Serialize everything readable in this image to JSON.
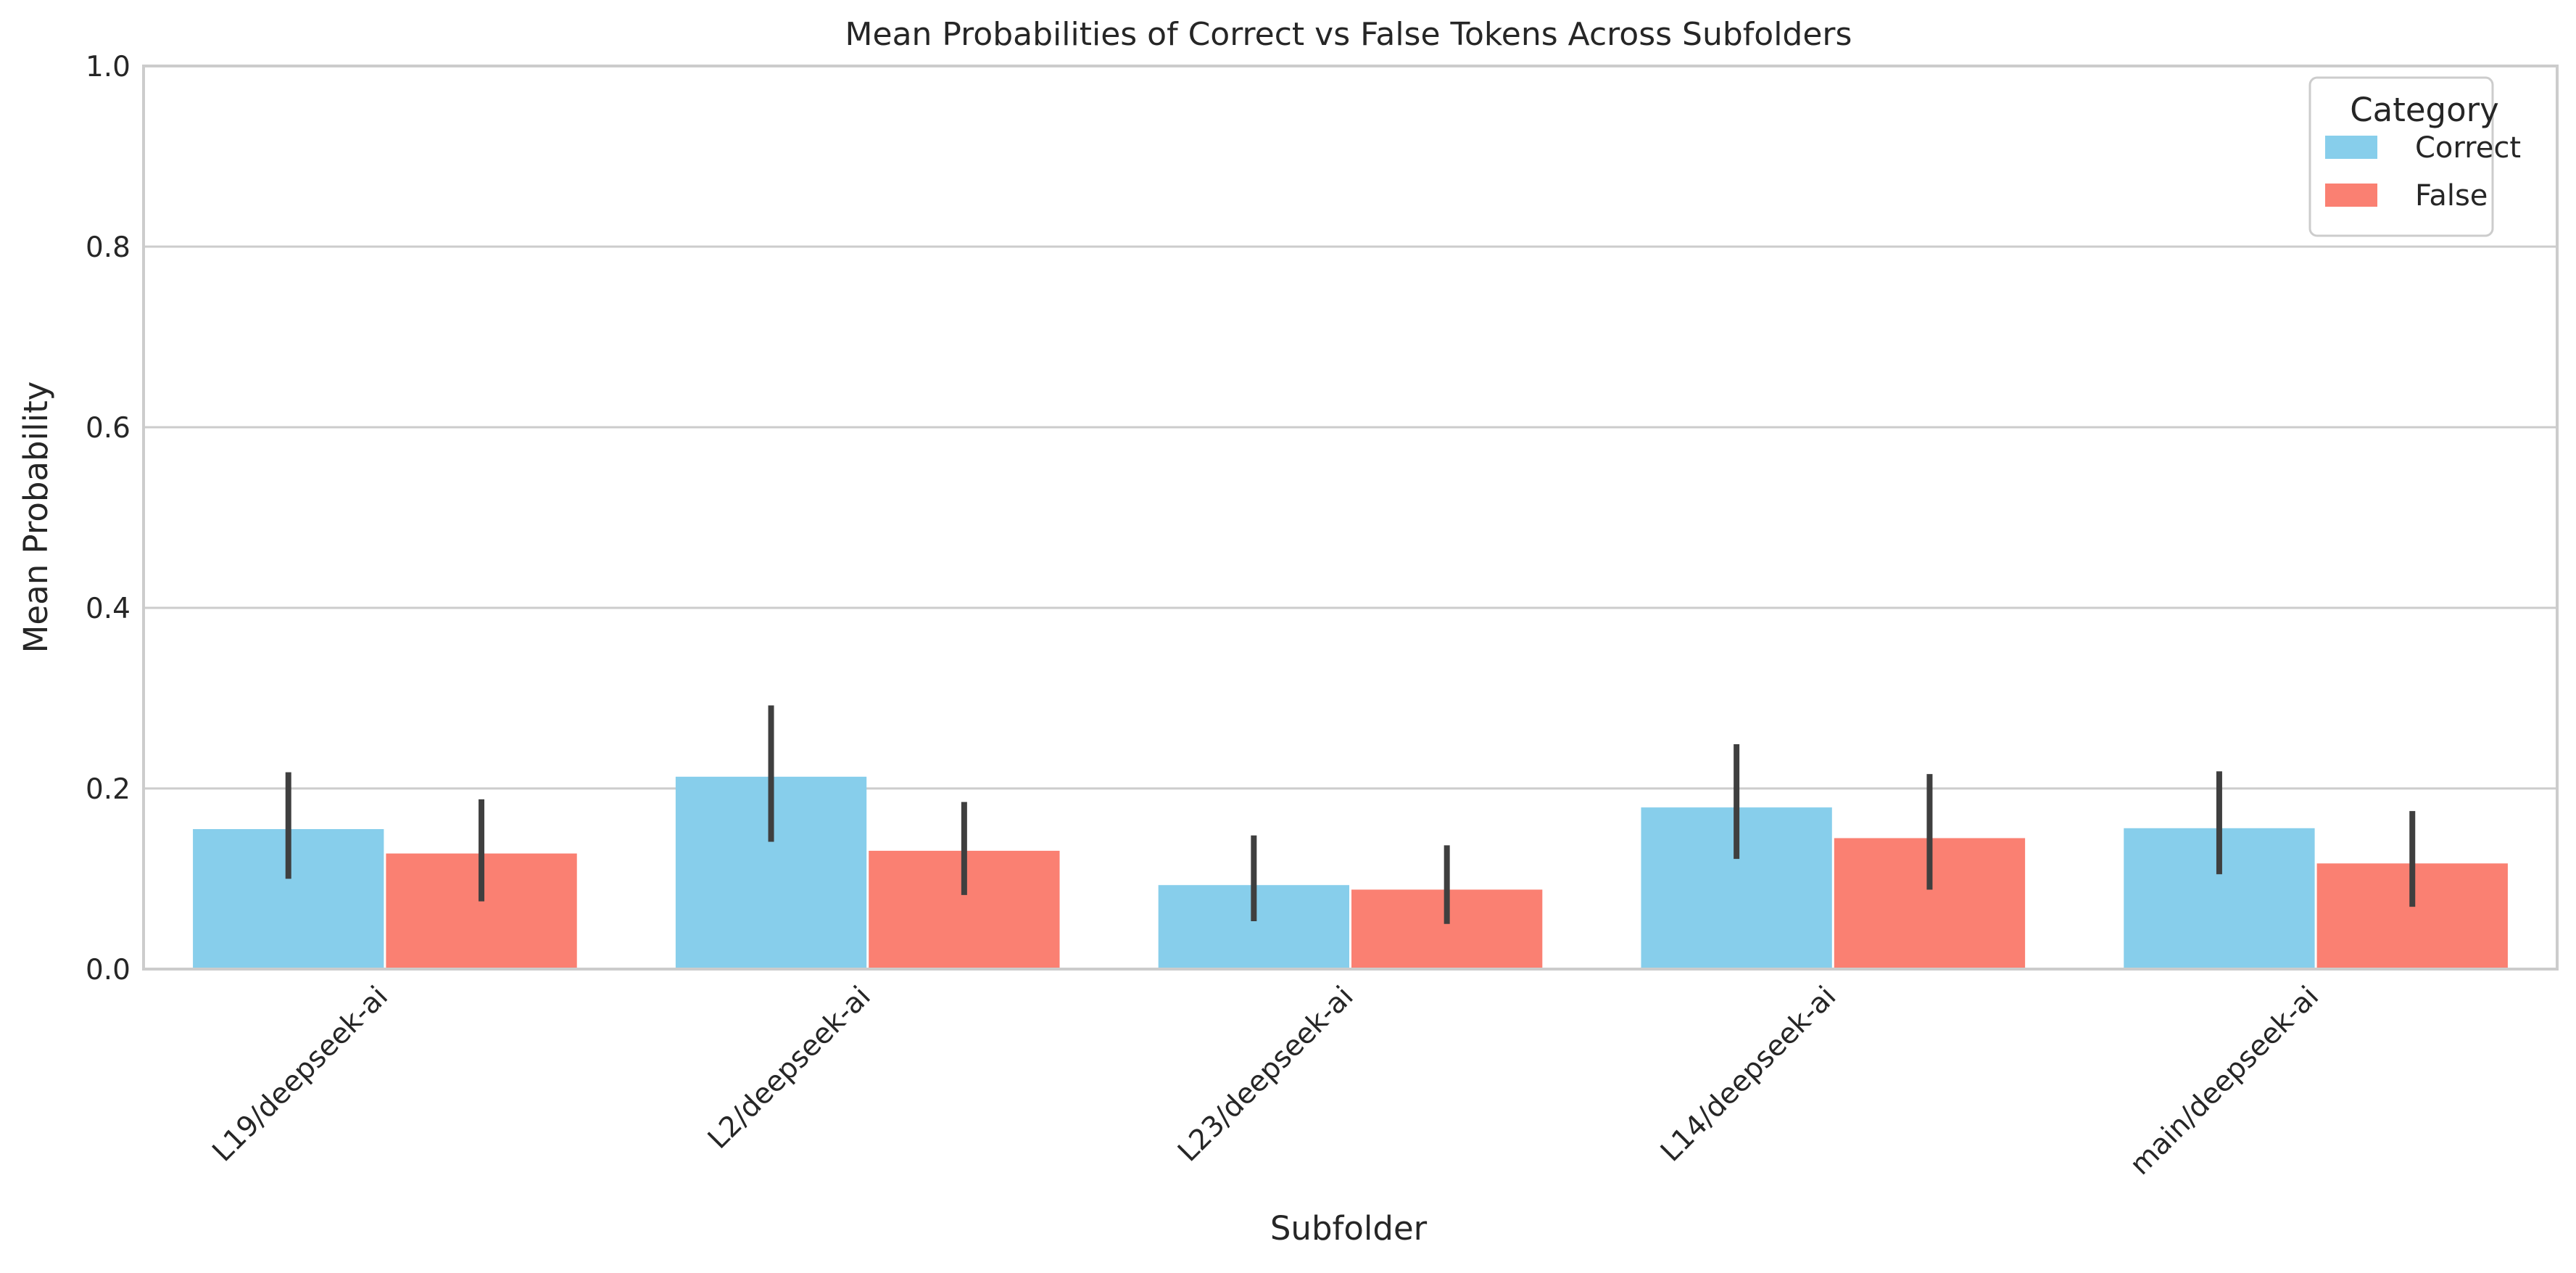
{
  "chart_data": {
    "type": "bar",
    "title": "Mean Probabilities of Correct vs False Tokens Across Subfolders",
    "xlabel": "Subfolder",
    "ylabel": "Mean Probability",
    "ylim": [
      0,
      1.0
    ],
    "yticks": [
      "0.0",
      "0.2",
      "0.4",
      "0.6",
      "0.8",
      "1.0"
    ],
    "grid": "y",
    "categories": [
      "L19/deepseek-ai",
      "L2/deepseek-ai",
      "L23/deepseek-ai",
      "L14/deepseek-ai",
      "main/deepseek-ai"
    ],
    "series": [
      {
        "name": "Correct",
        "color": "#87CEEB",
        "values": [
          0.155,
          0.213,
          0.093,
          0.179,
          0.156
        ],
        "error_low": [
          0.1,
          0.141,
          0.053,
          0.122,
          0.105
        ],
        "error_high": [
          0.218,
          0.292,
          0.148,
          0.249,
          0.219
        ]
      },
      {
        "name": "False",
        "color": "#FA8072",
        "values": [
          0.128,
          0.131,
          0.088,
          0.145,
          0.117
        ],
        "error_low": [
          0.075,
          0.082,
          0.05,
          0.088,
          0.069
        ],
        "error_high": [
          0.188,
          0.185,
          0.137,
          0.216,
          0.175
        ]
      }
    ],
    "legend": {
      "title": "Category",
      "placement": "top-right"
    }
  }
}
